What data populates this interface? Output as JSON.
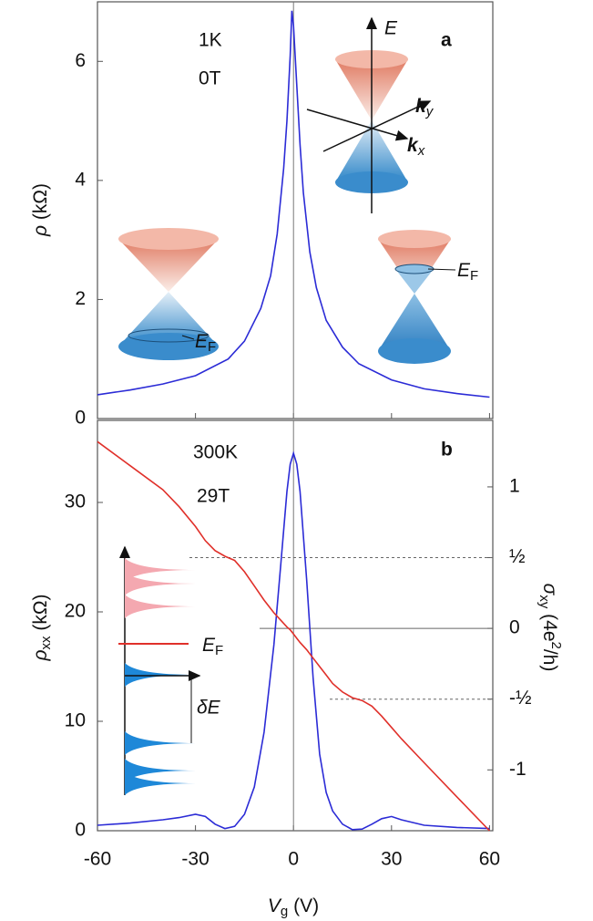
{
  "chart_data": [
    {
      "type": "line",
      "panel_label": "a",
      "temperature": "1K",
      "field": "0T",
      "y_label": {
        "text": "ρ",
        "rest": " (kΩ)"
      },
      "x": [
        -60,
        -50,
        -40,
        -30,
        -20,
        -15,
        -10,
        -7,
        -5,
        -3,
        -2,
        -1,
        -0.5,
        0,
        1,
        2,
        3,
        5,
        7,
        10,
        15,
        20,
        30,
        40,
        50,
        60
      ],
      "series": [
        {
          "color": "#2b2bd6",
          "values": [
            0.4,
            0.48,
            0.58,
            0.72,
            1.0,
            1.3,
            1.85,
            2.4,
            3.1,
            4.2,
            5.0,
            6.1,
            6.85,
            6.6,
            5.6,
            4.6,
            3.8,
            2.8,
            2.2,
            1.65,
            1.2,
            0.92,
            0.65,
            0.5,
            0.42,
            0.36
          ]
        }
      ],
      "xlim": [
        -60,
        61
      ],
      "xticks": [
        -60,
        -30,
        0,
        30,
        60
      ],
      "ylim": [
        0,
        7
      ],
      "yticks": [
        0,
        2,
        4,
        6
      ],
      "inset_labels": [
        {
          "text": "E"
        },
        {
          "text": "k",
          "sub": "y"
        },
        {
          "text": "k",
          "sub": "x"
        },
        {
          "text": "E",
          "sub": "F"
        },
        {
          "text": "E",
          "sub": "F"
        }
      ]
    },
    {
      "type": "line",
      "panel_label": "b",
      "temperature": "300K",
      "field": "29T",
      "x_label": {
        "text": "V",
        "sub": "g",
        "rest": " (V)"
      },
      "y_label": {
        "text": "ρ",
        "sub": "xx",
        "rest": " (kΩ)"
      },
      "y2_label": {
        "text": "σ",
        "sub": "xy",
        "rest": "  (4e",
        "sup": "2",
        "end": "/h)"
      },
      "x": [
        -60,
        -50,
        -40,
        -35,
        -30,
        -27,
        -24,
        -21,
        -18,
        -15,
        -12,
        -9,
        -6,
        -4,
        -2,
        -1,
        0,
        1,
        2,
        4,
        6,
        8,
        10,
        12,
        15,
        18,
        21,
        24,
        27,
        30,
        33,
        40,
        50,
        60
      ],
      "series": [
        {
          "color": "#2b2bd6",
          "values": [
            0.5,
            0.7,
            1.0,
            1.2,
            1.5,
            1.3,
            0.6,
            0.2,
            0.4,
            1.5,
            4,
            9,
            17,
            24,
            31,
            33.5,
            34.5,
            33.5,
            31,
            23,
            14,
            7,
            3.5,
            1.8,
            0.6,
            0.1,
            0.15,
            0.6,
            1.1,
            1.3,
            1.0,
            0.5,
            0.3,
            0.2
          ]
        },
        {
          "color": "#e0302a",
          "axis": "y2",
          "values": [
            1.32,
            1.15,
            0.98,
            0.86,
            0.72,
            0.62,
            0.55,
            0.51,
            0.48,
            0.4,
            0.3,
            0.2,
            0.11,
            0.06,
            0.01,
            -0.01,
            -0.04,
            -0.07,
            -0.1,
            -0.15,
            -0.21,
            -0.27,
            -0.33,
            -0.39,
            -0.45,
            -0.49,
            -0.51,
            -0.55,
            -0.62,
            -0.7,
            -0.78,
            -0.95,
            -1.19,
            -1.43
          ]
        }
      ],
      "xlim": [
        -60,
        61
      ],
      "xticks": [
        -60,
        -30,
        0,
        30,
        60
      ],
      "ylim": [
        0,
        37.5
      ],
      "yticks": [
        0,
        10,
        20,
        30
      ],
      "y2lim": [
        -1.43,
        1.47
      ],
      "y2ticks": [
        -1,
        {
          "value": -0.5,
          "label": "-½"
        },
        0,
        {
          "value": 0.5,
          "label": "½"
        },
        1
      ],
      "inset_labels": [
        {
          "text": "E",
          "sub": "F"
        },
        {
          "text": "δE"
        }
      ]
    }
  ]
}
